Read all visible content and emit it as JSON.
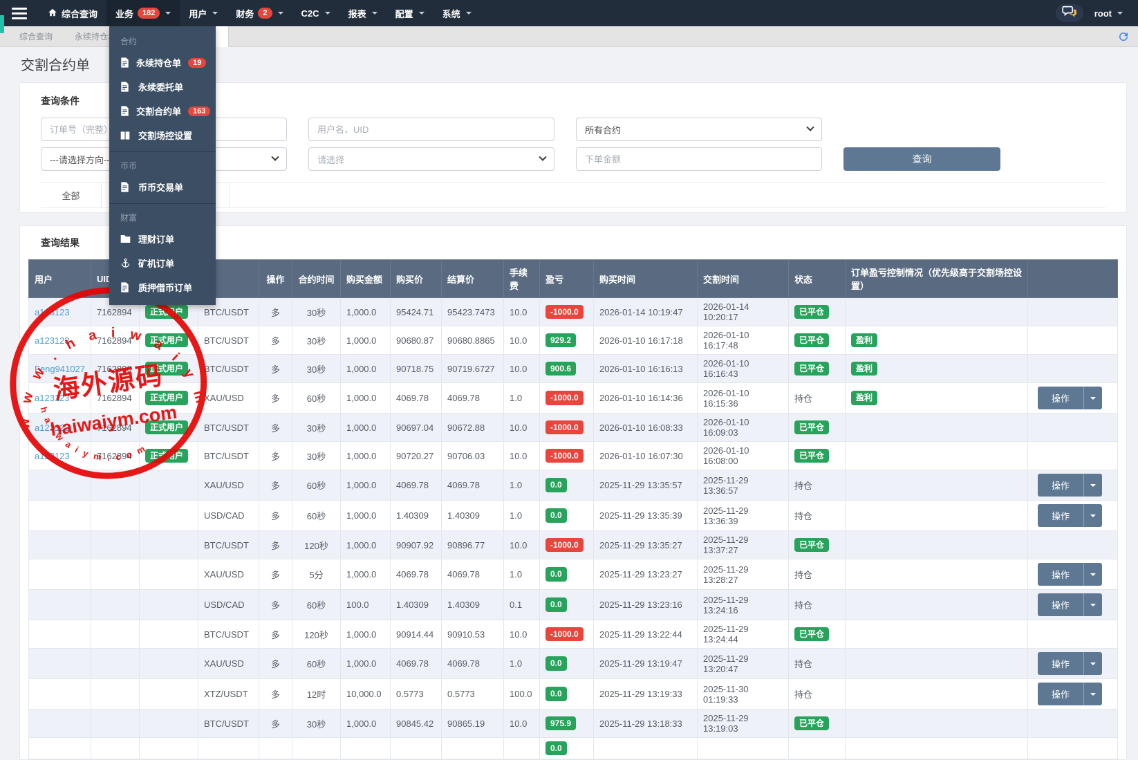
{
  "navbar": {
    "hamburger_icon": "hamburger-icon",
    "items": [
      {
        "label": "综合查询",
        "icon": "home-icon"
      },
      {
        "label": "业务",
        "badge": "182",
        "caret": true,
        "active": true
      },
      {
        "label": "用户",
        "caret": true
      },
      {
        "label": "财务",
        "badge": "2",
        "caret": true
      },
      {
        "label": "C2C",
        "caret": true
      },
      {
        "label": "报表",
        "caret": true
      },
      {
        "label": "配置",
        "caret": true
      },
      {
        "label": "系统",
        "caret": true
      }
    ],
    "chat_icon": "chat-bubbles-icon",
    "username": "root"
  },
  "tabstrip": {
    "tabs": [
      "综合查询",
      "永续持仓单"
    ],
    "refresh_icon": "refresh-icon"
  },
  "page": {
    "title": "交割合约单"
  },
  "business_dropdown": {
    "sections": [
      {
        "title": "合约",
        "items": [
          {
            "label": "永续持仓单",
            "icon": "file-icon",
            "badge": "19"
          },
          {
            "label": "永续委托单",
            "icon": "file-icon"
          },
          {
            "label": "交割合约单",
            "icon": "file-icon",
            "badge": "163"
          },
          {
            "label": "交割场控设置",
            "icon": "columns-icon"
          }
        ]
      },
      {
        "title": "币币",
        "items": [
          {
            "label": "币币交易单",
            "icon": "file-icon"
          }
        ]
      },
      {
        "title": "财富",
        "items": [
          {
            "label": "理财订单",
            "icon": "folder-icon"
          },
          {
            "label": "矿机订单",
            "icon": "anchor-icon"
          },
          {
            "label": "质押借币订单",
            "icon": "file-icon"
          }
        ]
      }
    ]
  },
  "query_form": {
    "title": "查询条件",
    "order_no_placeholder": "订单号（完整）",
    "user_placeholder": "用户名、UID",
    "contract_selected": "所有合约",
    "direction_selected": "---请选择方向---",
    "status_selected": "请选择",
    "amount_placeholder": "下单金额",
    "search_label": "查询",
    "filter_tab": "全部"
  },
  "results": {
    "title": "查询结果",
    "action_label": "操作",
    "columns": [
      "用户",
      "UID",
      "",
      "",
      "操作",
      "合约时间",
      "购买金额",
      "购买价",
      "结算价",
      "手续费",
      "盈亏",
      "购买时间",
      "交割时间",
      "状态",
      "订单盈亏控制情况（优先级高于交割场控设置）",
      ""
    ],
    "rows": [
      {
        "user": "a123123",
        "uid": "7162894",
        "user_type": "正式用户",
        "contract": "BTC/USDT",
        "direction": "多",
        "period": "30秒",
        "amount": "1,000.0",
        "buy_price": "95424.71",
        "settle_price": "95423.7473",
        "fee": "10.0",
        "pnl": "-1000.0",
        "pnl_sign": "neg",
        "buy_time": "2026-01-14 10:19:47",
        "settle_time": "2026-01-14 10:20:17",
        "status": "已平仓",
        "status_closed": true,
        "control": "",
        "has_action": false
      },
      {
        "user": "a123123",
        "uid": "7162894",
        "user_type": "正式用户",
        "contract": "BTC/USDT",
        "direction": "多",
        "period": "30秒",
        "amount": "1,000.0",
        "buy_price": "90680.87",
        "settle_price": "90680.8865",
        "fee": "10.0",
        "pnl": "929.2",
        "pnl_sign": "pos",
        "buy_time": "2026-01-10 16:17:18",
        "settle_time": "2026-01-10 16:17:48",
        "status": "已平仓",
        "status_closed": true,
        "control": "盈利",
        "has_action": false
      },
      {
        "user": "Feng941027",
        "uid": "7162880",
        "user_type": "正式用户",
        "contract": "BTC/USDT",
        "direction": "多",
        "period": "30秒",
        "amount": "1,000.0",
        "buy_price": "90718.75",
        "settle_price": "90719.6727",
        "fee": "10.0",
        "pnl": "900.6",
        "pnl_sign": "pos",
        "buy_time": "2026-01-10 16:16:13",
        "settle_time": "2026-01-10 16:16:43",
        "status": "已平仓",
        "status_closed": true,
        "control": "盈利",
        "has_action": false
      },
      {
        "user": "a123123",
        "uid": "7162894",
        "user_type": "正式用户",
        "contract": "XAU/USD",
        "direction": "多",
        "period": "60秒",
        "amount": "1,000.0",
        "buy_price": "4069.78",
        "settle_price": "4069.78",
        "fee": "1.0",
        "pnl": "-1000.0",
        "pnl_sign": "neg",
        "buy_time": "2026-01-10 16:14:36",
        "settle_time": "2026-01-10 16:15:36",
        "status": "持仓",
        "status_closed": false,
        "control": "盈利",
        "has_action": true
      },
      {
        "user": "a123123",
        "uid": "7162894",
        "user_type": "正式用户",
        "contract": "BTC/USDT",
        "direction": "多",
        "period": "30秒",
        "amount": "1,000.0",
        "buy_price": "90697.04",
        "settle_price": "90672.88",
        "fee": "10.0",
        "pnl": "-1000.0",
        "pnl_sign": "neg",
        "buy_time": "2026-01-10 16:08:33",
        "settle_time": "2026-01-10 16:09:03",
        "status": "已平仓",
        "status_closed": true,
        "control": "",
        "has_action": false
      },
      {
        "user": "a123123",
        "uid": "7162894",
        "user_type": "正式用户",
        "contract": "BTC/USDT",
        "direction": "多",
        "period": "30秒",
        "amount": "1,000.0",
        "buy_price": "90720.27",
        "settle_price": "90706.03",
        "fee": "10.0",
        "pnl": "-1000.0",
        "pnl_sign": "neg",
        "buy_time": "2026-01-10 16:07:30",
        "settle_time": "2026-01-10 16:08:00",
        "status": "已平仓",
        "status_closed": true,
        "control": "",
        "has_action": false
      },
      {
        "user": "",
        "uid": "",
        "user_type": "",
        "contract": "XAU/USD",
        "direction": "多",
        "period": "60秒",
        "amount": "1,000.0",
        "buy_price": "4069.78",
        "settle_price": "4069.78",
        "fee": "1.0",
        "pnl": "0.0",
        "pnl_sign": "pos",
        "buy_time": "2025-11-29 13:35:57",
        "settle_time": "2025-11-29 13:36:57",
        "status": "持仓",
        "status_closed": false,
        "control": "",
        "has_action": true
      },
      {
        "user": "",
        "uid": "",
        "user_type": "",
        "contract": "USD/CAD",
        "direction": "多",
        "period": "60秒",
        "amount": "1,000.0",
        "buy_price": "1.40309",
        "settle_price": "1.40309",
        "fee": "1.0",
        "pnl": "0.0",
        "pnl_sign": "pos",
        "buy_time": "2025-11-29 13:35:39",
        "settle_time": "2025-11-29 13:36:39",
        "status": "持仓",
        "status_closed": false,
        "control": "",
        "has_action": true
      },
      {
        "user": "",
        "uid": "",
        "user_type": "",
        "contract": "BTC/USDT",
        "direction": "多",
        "period": "120秒",
        "amount": "1,000.0",
        "buy_price": "90907.92",
        "settle_price": "90896.77",
        "fee": "10.0",
        "pnl": "-1000.0",
        "pnl_sign": "neg",
        "buy_time": "2025-11-29 13:35:27",
        "settle_time": "2025-11-29 13:37:27",
        "status": "已平仓",
        "status_closed": true,
        "control": "",
        "has_action": false
      },
      {
        "user": "",
        "uid": "",
        "user_type": "",
        "contract": "XAU/USD",
        "direction": "多",
        "period": "5分",
        "amount": "1,000.0",
        "buy_price": "4069.78",
        "settle_price": "4069.78",
        "fee": "1.0",
        "pnl": "0.0",
        "pnl_sign": "pos",
        "buy_time": "2025-11-29 13:23:27",
        "settle_time": "2025-11-29 13:28:27",
        "status": "持仓",
        "status_closed": false,
        "control": "",
        "has_action": true
      },
      {
        "user": "",
        "uid": "",
        "user_type": "",
        "contract": "USD/CAD",
        "direction": "多",
        "period": "60秒",
        "amount": "100.0",
        "buy_price": "1.40309",
        "settle_price": "1.40309",
        "fee": "0.1",
        "pnl": "0.0",
        "pnl_sign": "pos",
        "buy_time": "2025-11-29 13:23:16",
        "settle_time": "2025-11-29 13:24:16",
        "status": "持仓",
        "status_closed": false,
        "control": "",
        "has_action": true
      },
      {
        "user": "",
        "uid": "",
        "user_type": "",
        "contract": "BTC/USDT",
        "direction": "多",
        "period": "120秒",
        "amount": "1,000.0",
        "buy_price": "90914.44",
        "settle_price": "90910.53",
        "fee": "10.0",
        "pnl": "-1000.0",
        "pnl_sign": "neg",
        "buy_time": "2025-11-29 13:22:44",
        "settle_time": "2025-11-29 13:24:44",
        "status": "已平仓",
        "status_closed": true,
        "control": "",
        "has_action": false
      },
      {
        "user": "",
        "uid": "",
        "user_type": "",
        "contract": "XAU/USD",
        "direction": "多",
        "period": "60秒",
        "amount": "1,000.0",
        "buy_price": "4069.78",
        "settle_price": "4069.78",
        "fee": "1.0",
        "pnl": "0.0",
        "pnl_sign": "pos",
        "buy_time": "2025-11-29 13:19:47",
        "settle_time": "2025-11-29 13:20:47",
        "status": "持仓",
        "status_closed": false,
        "control": "",
        "has_action": true
      },
      {
        "user": "",
        "uid": "",
        "user_type": "",
        "contract": "XTZ/USDT",
        "direction": "多",
        "period": "12时",
        "amount": "10,000.0",
        "buy_price": "0.5773",
        "settle_price": "0.5773",
        "fee": "100.0",
        "pnl": "0.0",
        "pnl_sign": "pos",
        "buy_time": "2025-11-29 13:19:33",
        "settle_time": "2025-11-30 01:19:33",
        "status": "持仓",
        "status_closed": false,
        "control": "",
        "has_action": true
      },
      {
        "user": "",
        "uid": "",
        "user_type": "",
        "contract": "BTC/USDT",
        "direction": "多",
        "period": "30秒",
        "amount": "1,000.0",
        "buy_price": "90845.42",
        "settle_price": "90865.19",
        "fee": "10.0",
        "pnl": "975.9",
        "pnl_sign": "pos",
        "buy_time": "2025-11-29 13:18:33",
        "settle_time": "2025-11-29 13:19:03",
        "status": "已平仓",
        "status_closed": true,
        "control": "",
        "has_action": false
      },
      {
        "user": "",
        "uid": "",
        "user_type": "",
        "contract": "",
        "direction": "",
        "period": "",
        "amount": "",
        "buy_price": "",
        "settle_price": "",
        "fee": "",
        "pnl": "0.0",
        "pnl_sign": "pos",
        "buy_time": "",
        "settle_time": "",
        "status": "",
        "status_closed": false,
        "control": "",
        "has_action": false
      }
    ]
  },
  "watermark": {
    "arc_top": "w w w . h a i w a i y m . c o m",
    "center_cn": "海外源码",
    "center_en": "haiwaiym.com",
    "arc_bottom": "h a i w a i y m . c o m",
    "color": "#e60505"
  },
  "colors": {
    "navbar_bg": "#222d3b",
    "dropdown_bg": "#3c4e63",
    "table_header_bg": "#5a6b81",
    "badge_red": "#e8453c",
    "badge_green": "#28a35c",
    "button_slate": "#5e7893",
    "link_blue": "#4f9bd5"
  }
}
